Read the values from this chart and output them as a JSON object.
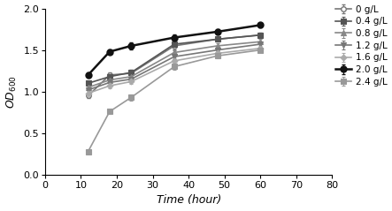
{
  "x_points": [
    12,
    18,
    24,
    36,
    48,
    60
  ],
  "series": [
    {
      "label": "0 g/L",
      "color": "#777777",
      "marker": "o",
      "markersize": 4,
      "linewidth": 1.2,
      "linestyle": "-",
      "markerfacecolor": "white",
      "markeredgewidth": 1.0,
      "y": [
        0.95,
        1.2,
        1.22,
        1.55,
        1.63,
        1.68
      ],
      "yerr": [
        0.03,
        0.03,
        0.04,
        0.04,
        0.03,
        0.03
      ]
    },
    {
      "label": "0.4 g/L",
      "color": "#555555",
      "marker": "s",
      "markersize": 4,
      "linewidth": 1.2,
      "linestyle": "-",
      "markerfacecolor": "#555555",
      "markeredgewidth": 0.8,
      "y": [
        1.1,
        1.18,
        1.23,
        1.57,
        1.63,
        1.68
      ],
      "yerr": [
        0.03,
        0.03,
        0.03,
        0.03,
        0.03,
        0.03
      ]
    },
    {
      "label": "0.8 g/L",
      "color": "#888888",
      "marker": "^",
      "markersize": 4,
      "linewidth": 1.2,
      "linestyle": "-",
      "markerfacecolor": "#888888",
      "markeredgewidth": 0.8,
      "y": [
        1.05,
        1.14,
        1.18,
        1.47,
        1.55,
        1.6
      ],
      "yerr": [
        0.03,
        0.03,
        0.03,
        0.03,
        0.03,
        0.03
      ]
    },
    {
      "label": "1.2 g/L",
      "color": "#777777",
      "marker": "v",
      "markersize": 4,
      "linewidth": 1.2,
      "linestyle": "-",
      "markerfacecolor": "#777777",
      "markeredgewidth": 0.8,
      "y": [
        1.02,
        1.11,
        1.15,
        1.42,
        1.5,
        1.57
      ],
      "yerr": [
        0.03,
        0.03,
        0.03,
        0.03,
        0.03,
        0.03
      ]
    },
    {
      "label": "1.6 g/L",
      "color": "#aaaaaa",
      "marker": "D",
      "markersize": 3.5,
      "linewidth": 1.2,
      "linestyle": "-",
      "markerfacecolor": "#aaaaaa",
      "markeredgewidth": 0.8,
      "y": [
        0.98,
        1.07,
        1.12,
        1.37,
        1.46,
        1.52
      ],
      "yerr": [
        0.03,
        0.03,
        0.03,
        0.03,
        0.03,
        0.03
      ]
    },
    {
      "label": "2.0 g/L",
      "color": "#111111",
      "marker": "o",
      "markersize": 5,
      "linewidth": 1.8,
      "linestyle": "-",
      "markerfacecolor": "#111111",
      "markeredgewidth": 1.0,
      "y": [
        1.2,
        1.48,
        1.55,
        1.65,
        1.72,
        1.8
      ],
      "yerr": [
        0.03,
        0.03,
        0.04,
        0.04,
        0.03,
        0.03
      ]
    },
    {
      "label": "2.4 g/L",
      "color": "#999999",
      "marker": "s",
      "markersize": 4,
      "linewidth": 1.2,
      "linestyle": "-",
      "markerfacecolor": "#999999",
      "markeredgewidth": 0.8,
      "y": [
        0.28,
        0.76,
        0.93,
        1.3,
        1.43,
        1.5
      ],
      "yerr": [
        0.02,
        0.03,
        0.04,
        0.04,
        0.03,
        0.03
      ]
    }
  ],
  "xlabel": "Time (hour)",
  "ylabel": "OD$_{600}$",
  "xlim": [
    0,
    80
  ],
  "ylim": [
    0.0,
    2.0
  ],
  "xticks": [
    0,
    10,
    20,
    30,
    40,
    50,
    60,
    70,
    80
  ],
  "yticks": [
    0.0,
    0.5,
    1.0,
    1.5,
    2.0
  ],
  "background_color": "#ffffff",
  "figwidth": 4.43,
  "figheight": 2.39,
  "dpi": 100
}
